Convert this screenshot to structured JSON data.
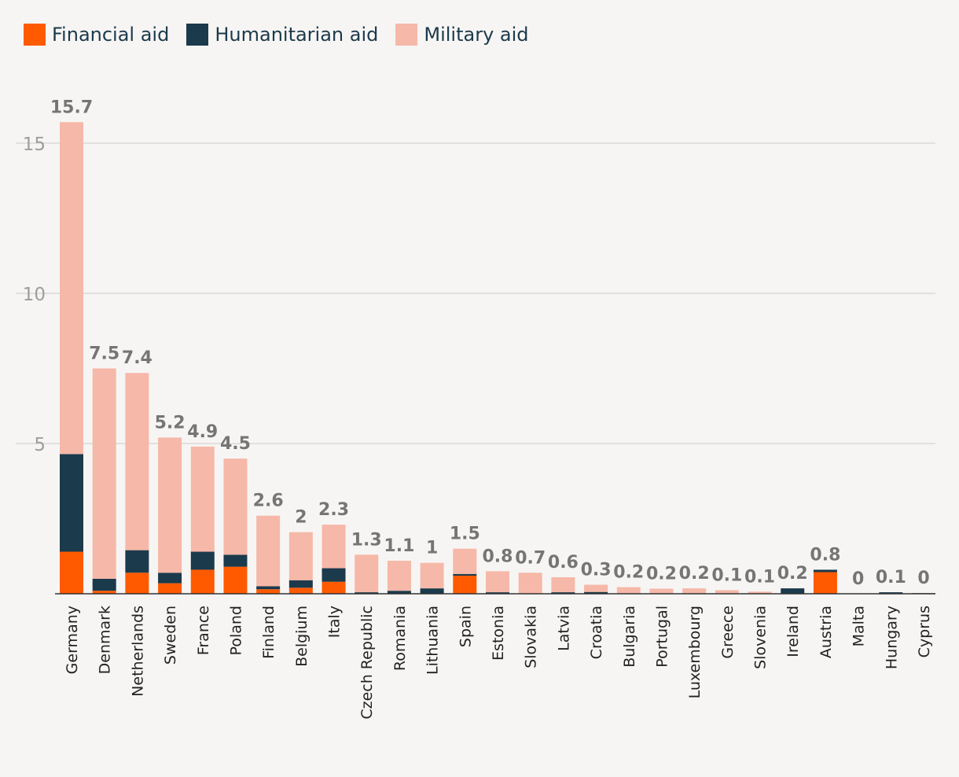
{
  "chart_data": {
    "type": "bar",
    "stacked": true,
    "categories": [
      "Germany",
      "Denmark",
      "Netherlands",
      "Sweden",
      "France",
      "Poland",
      "Finland",
      "Belgium",
      "Italy",
      "Czech Republic",
      "Romania",
      "Lithuania",
      "Spain",
      "Estonia",
      "Slovakia",
      "Latvia",
      "Croatia",
      "Bulgaria",
      "Portugal",
      "Luxembourg",
      "Greece",
      "Slovenia",
      "Ireland",
      "Austria",
      "Malta",
      "Hungary",
      "Cyprus"
    ],
    "totals_labels": [
      "15.7",
      "7.5",
      "7.4",
      "5.2",
      "4.9",
      "4.5",
      "2.6",
      "2",
      "2.3",
      "1.3",
      "1.1",
      "1",
      "1.5",
      "0.8",
      "0.7",
      "0.6",
      "0.3",
      "0.2",
      "0.2",
      "0.2",
      "0.1",
      "0.1",
      "0.2",
      "0.8",
      "0",
      "0.1",
      "0"
    ],
    "series": [
      {
        "name": "Financial aid",
        "color": "#ff5a00",
        "values": [
          1.4,
          0.1,
          0.7,
          0.35,
          0.8,
          0.9,
          0.15,
          0.2,
          0.4,
          0.0,
          0.0,
          0.0,
          0.6,
          0.0,
          0.0,
          0.0,
          0.0,
          0.0,
          0.0,
          0.0,
          0.0,
          0.0,
          0.0,
          0.72,
          0.0,
          0.0,
          0.0
        ]
      },
      {
        "name": "Humanitarian aid",
        "color": "#1b3a4b",
        "values": [
          3.25,
          0.4,
          0.75,
          0.35,
          0.6,
          0.4,
          0.1,
          0.25,
          0.45,
          0.05,
          0.1,
          0.18,
          0.06,
          0.05,
          0.0,
          0.05,
          0.06,
          0.0,
          0.0,
          0.0,
          0.0,
          0.0,
          0.18,
          0.08,
          0.0,
          0.05,
          0.02
        ]
      },
      {
        "name": "Military aid",
        "color": "#f6b8a8",
        "values": [
          11.05,
          7.0,
          5.9,
          4.5,
          3.5,
          3.2,
          2.35,
          1.6,
          1.45,
          1.25,
          1.0,
          0.85,
          0.84,
          0.7,
          0.7,
          0.5,
          0.24,
          0.22,
          0.17,
          0.18,
          0.12,
          0.07,
          0.0,
          0.0,
          0.0,
          0.0,
          0.0
        ]
      }
    ],
    "yticks": [
      5,
      10,
      15
    ],
    "ylim": [
      0,
      15.7
    ],
    "grid": true,
    "legend_position": "top-left",
    "xlabel": "",
    "ylabel": ""
  }
}
